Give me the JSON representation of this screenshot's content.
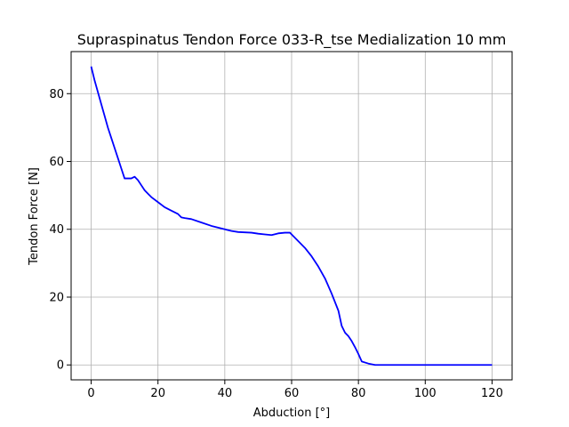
{
  "chart_data": {
    "type": "line",
    "title": "Supraspinatus Tendon Force 033-R_tse Medialization 10 mm",
    "xlabel": "Abduction [°]",
    "ylabel": "Tendon Force [N]",
    "xlim": [
      -6,
      126
    ],
    "ylim": [
      -4.4,
      92.4
    ],
    "xticks": [
      0,
      20,
      40,
      60,
      80,
      100,
      120
    ],
    "yticks": [
      0,
      20,
      40,
      60,
      80
    ],
    "grid": true,
    "series": [
      {
        "color": "#0000ff",
        "x": [
          0,
          1,
          2,
          3,
          4,
          5,
          6,
          7,
          8,
          9,
          10,
          11,
          12,
          13,
          14,
          15,
          16,
          17,
          18,
          20,
          22,
          24,
          26,
          27,
          28,
          30,
          33,
          36,
          38,
          40,
          42,
          44,
          48,
          50,
          52,
          54,
          56,
          58,
          59.5,
          60,
          62,
          64,
          66,
          68,
          70,
          72,
          74,
          75,
          76,
          77,
          78,
          79,
          80,
          81,
          83,
          85,
          90,
          100,
          110,
          120
        ],
        "y": [
          88,
          84,
          80.5,
          77,
          73.5,
          70,
          67,
          64,
          61,
          58,
          55,
          55,
          55,
          55.5,
          54.5,
          53,
          51.5,
          50.5,
          49.5,
          48,
          46.5,
          45.5,
          44.5,
          43.5,
          43.3,
          43,
          42,
          41,
          40.5,
          40,
          39.5,
          39.2,
          39,
          38.7,
          38.5,
          38.3,
          38.8,
          39,
          39,
          38.5,
          36.5,
          34.5,
          32,
          29,
          25.5,
          21,
          16,
          11.5,
          9.5,
          8.5,
          7,
          5.2,
          3.2,
          1.0,
          0.4,
          0,
          0,
          0,
          0,
          0
        ]
      }
    ]
  }
}
